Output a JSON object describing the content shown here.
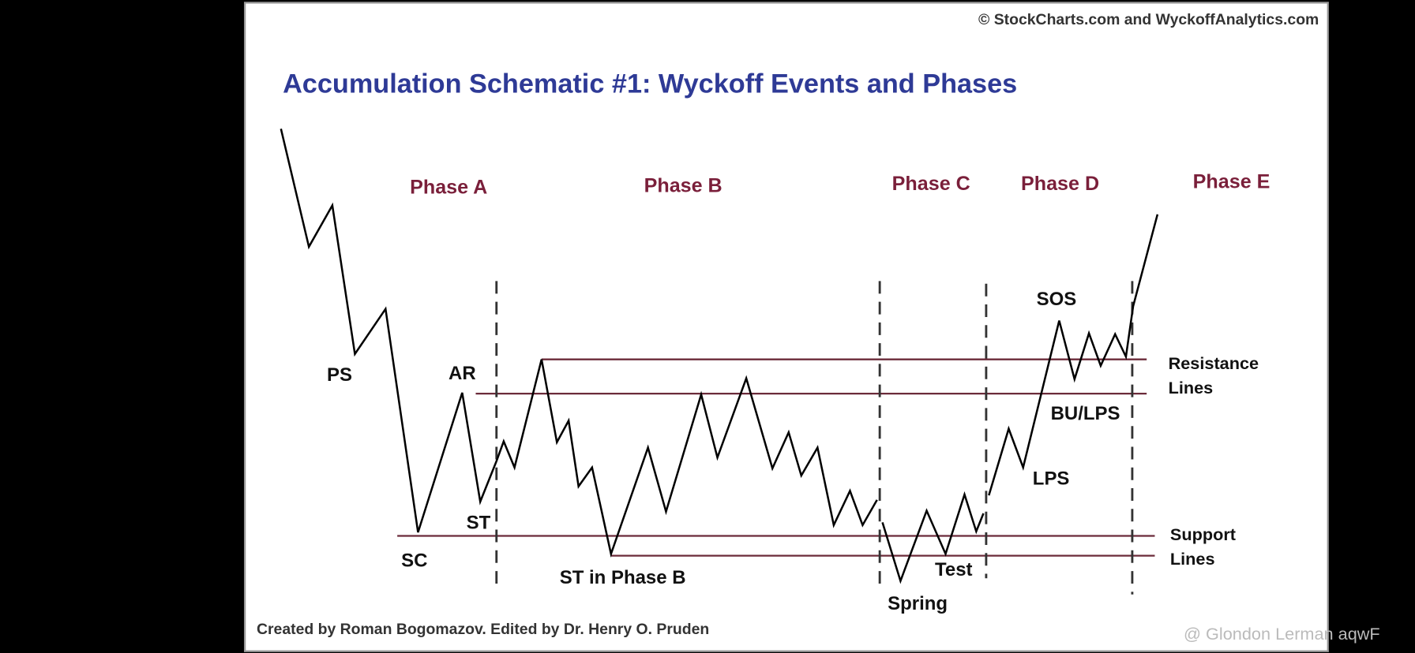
{
  "copyright": "© StockCharts.com and WyckoffAnalytics.com",
  "title": "Accumulation Schematic #1: Wyckoff Events and Phases",
  "phases": [
    "Phase A",
    "Phase B",
    "Phase C",
    "Phase D",
    "Phase E"
  ],
  "events": [
    "PS",
    "SC",
    "AR",
    "ST",
    "ST in Phase B",
    "Spring",
    "Test",
    "LPS",
    "BU/LPS",
    "SOS"
  ],
  "resistance_label": [
    "Resistance",
    "Lines"
  ],
  "support_label": [
    "Support",
    "Lines"
  ],
  "credit": "Created by Roman Bogomazov. Edited by Dr. Henry O. Pruden",
  "watermark": "@ Glondon Lerman aqwF"
}
